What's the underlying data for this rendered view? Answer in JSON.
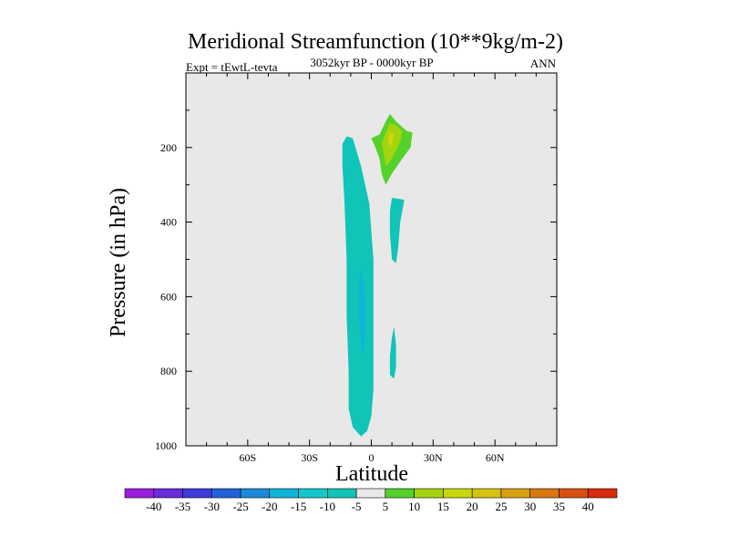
{
  "chart_data": {
    "type": "contour",
    "title": "Meridional Streamfunction (10**9kg/m-2)",
    "subtitle_left": "Expt = tEwtL-tevta",
    "subtitle_center": "3052kyr BP - 0000kyr BP",
    "subtitle_right": "ANN",
    "xlabel": "Latitude",
    "ylabel": "Pressure (in hPa)",
    "xlim": [
      -90,
      90
    ],
    "ylim": [
      1000,
      0
    ],
    "x_ticks": [
      {
        "value": -60,
        "label": "60S"
      },
      {
        "value": -30,
        "label": "30S"
      },
      {
        "value": 0,
        "label": "0"
      },
      {
        "value": 30,
        "label": "30N"
      },
      {
        "value": 60,
        "label": "60N"
      }
    ],
    "y_ticks": [
      {
        "value": 200,
        "label": "200"
      },
      {
        "value": 400,
        "label": "400"
      },
      {
        "value": 600,
        "label": "600"
      },
      {
        "value": 800,
        "label": "800"
      },
      {
        "value": 1000,
        "label": "1000"
      }
    ],
    "background_color": "#e8e8e8",
    "contour_regions": [
      {
        "level": "-15 to -10",
        "color": "#10c4b8",
        "points": [
          [
            -14,
            190
          ],
          [
            -12,
            170
          ],
          [
            -9,
            175
          ],
          [
            -5,
            250
          ],
          [
            -1,
            350
          ],
          [
            1,
            500
          ],
          [
            1,
            700
          ],
          [
            1,
            850
          ],
          [
            0,
            920
          ],
          [
            -2,
            960
          ],
          [
            -5,
            975
          ],
          [
            -9,
            950
          ],
          [
            -11,
            900
          ],
          [
            -11,
            800
          ],
          [
            -12,
            650
          ],
          [
            -12,
            500
          ],
          [
            -13,
            350
          ],
          [
            -14,
            250
          ]
        ]
      },
      {
        "level": "-20 to -15",
        "color": "#0fb4d8",
        "points": [
          [
            -5,
            520
          ],
          [
            -3,
            600
          ],
          [
            -3,
            700
          ],
          [
            -4,
            760
          ],
          [
            -5,
            720
          ],
          [
            -6,
            650
          ],
          [
            -6,
            560
          ]
        ]
      },
      {
        "level": "-10 to -5",
        "color": "#10c4b8",
        "points": [
          [
            10,
            335
          ],
          [
            16,
            340
          ],
          [
            14,
            400
          ],
          [
            13,
            470
          ],
          [
            12,
            510
          ],
          [
            10,
            500
          ],
          [
            9,
            430
          ],
          [
            9,
            370
          ]
        ]
      },
      {
        "level": "-10 to -5",
        "color": "#10c4b8",
        "points": [
          [
            11,
            680
          ],
          [
            12,
            730
          ],
          [
            12,
            790
          ],
          [
            11,
            820
          ],
          [
            9,
            810
          ],
          [
            9,
            760
          ],
          [
            10,
            710
          ]
        ]
      },
      {
        "level": "5 to 10",
        "color": "#54d12b",
        "points": [
          [
            4,
            165
          ],
          [
            7,
            130
          ],
          [
            9,
            110
          ],
          [
            12,
            130
          ],
          [
            17,
            155
          ],
          [
            20,
            160
          ],
          [
            19,
            200
          ],
          [
            15,
            230
          ],
          [
            10,
            270
          ],
          [
            7,
            300
          ],
          [
            5,
            270
          ],
          [
            4,
            230
          ],
          [
            2,
            200
          ],
          [
            0,
            175
          ]
        ]
      },
      {
        "level": "10 to 15",
        "color": "#a4d40d",
        "points": [
          [
            5,
            190
          ],
          [
            7,
            160
          ],
          [
            9,
            135
          ],
          [
            12,
            140
          ],
          [
            15,
            155
          ],
          [
            14,
            185
          ],
          [
            10,
            230
          ],
          [
            7,
            250
          ],
          [
            6,
            215
          ]
        ]
      },
      {
        "level": "15 to 20",
        "color": "#d4d40f",
        "points": [
          [
            8,
            175
          ],
          [
            9,
            160
          ],
          [
            11,
            165
          ],
          [
            10,
            190
          ],
          [
            9,
            200
          ]
        ]
      }
    ],
    "colorbar": {
      "labels": [
        "-40",
        "-35",
        "-30",
        "-25",
        "-20",
        "-15",
        "-10",
        "-5",
        "5",
        "10",
        "15",
        "20",
        "25",
        "30",
        "35",
        "40"
      ],
      "colors": [
        "#9b1fdc",
        "#6a2bd8",
        "#3d3ad8",
        "#2261d8",
        "#1a8ad8",
        "#0fb4d8",
        "#12c8cc",
        "#10c4b8",
        "#e8e8e8",
        "#54d12b",
        "#a4d40d",
        "#c8d80d",
        "#d4c40f",
        "#d8a10f",
        "#d8780f",
        "#d8500f",
        "#d82b0f"
      ]
    }
  }
}
